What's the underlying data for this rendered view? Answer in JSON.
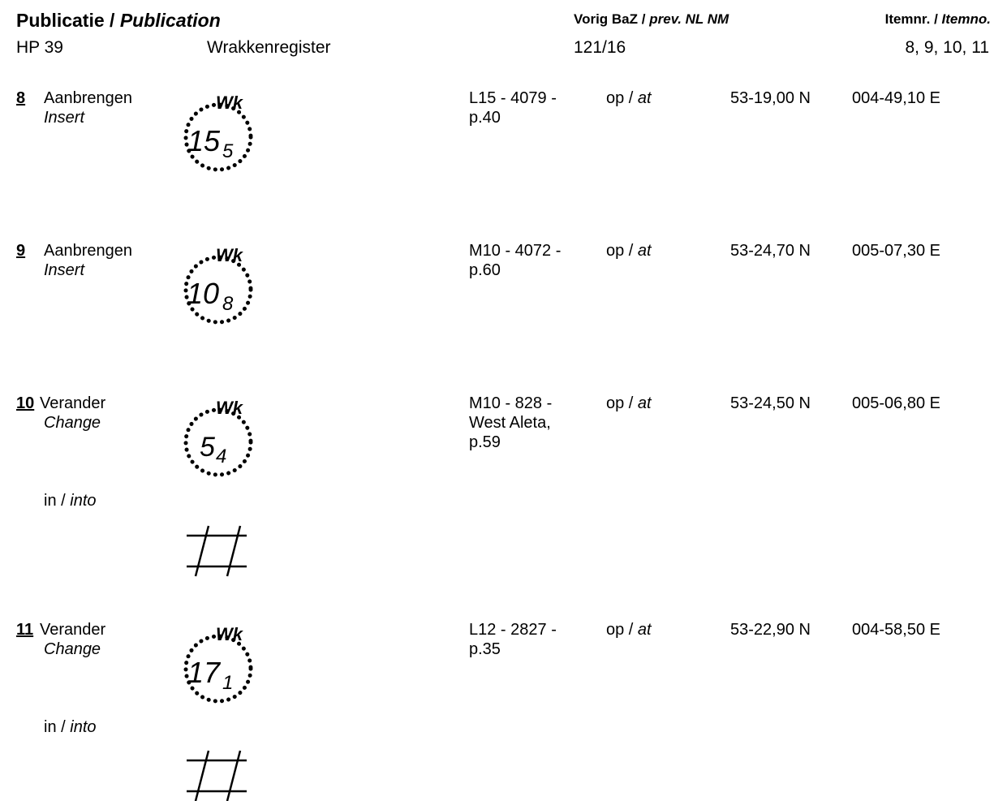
{
  "header": {
    "publication_label": "Publicatie",
    "publication_label_en": "Publication",
    "publication_code": "HP 39",
    "publication_name": "Wrakkenregister",
    "prev_label": "Vorig BaZ",
    "prev_label_en": "prev. NL NM",
    "prev_value": "121/16",
    "itemnr_label": "Itemnr.",
    "itemnr_label_en": "Itemno.",
    "itemnr_value": "8, 9, 10, 11",
    "slash": "/"
  },
  "items": [
    {
      "number": "8",
      "action": "Aanbrengen",
      "action_en": "Insert",
      "symbol": {
        "label": "Wk",
        "depth_main": "15",
        "depth_sub": "5",
        "icon": "wreck-depth-symbol-icon"
      },
      "ref_line1": "L15 - 4079 -",
      "ref_line2": "p.40",
      "ref_line3": "",
      "at": "op /",
      "at_en": "at",
      "lat": "53-19,00 N",
      "lon": "004-49,10 E"
    },
    {
      "number": "9",
      "action": "Aanbrengen",
      "action_en": "Insert",
      "symbol": {
        "label": "Wk",
        "depth_main": "10",
        "depth_sub": "8",
        "icon": "wreck-depth-symbol-icon"
      },
      "ref_line1": "M10 - 4072 -",
      "ref_line2": "p.60",
      "ref_line3": "",
      "at": "op /",
      "at_en": "at",
      "lat": "53-24,70 N",
      "lon": "005-07,30 E"
    },
    {
      "number": "10",
      "action": "Verander",
      "action_en": "Change",
      "symbol": {
        "label": "Wk",
        "depth_main": "5",
        "depth_sub": "4",
        "icon": "wreck-depth-symbol-icon"
      },
      "into": "in /",
      "into_en": "into",
      "new_symbol_icon": "foul-ground-hash-icon",
      "ref_line1": "M10 - 828 -",
      "ref_line2": "West Aleta,",
      "ref_line3": "p.59",
      "at": "op /",
      "at_en": "at",
      "lat": "53-24,50 N",
      "lon": "005-06,80 E"
    },
    {
      "number": "11",
      "action": "Verander",
      "action_en": "Change",
      "symbol": {
        "label": "Wk",
        "depth_main": "17",
        "depth_sub": "1",
        "icon": "wreck-depth-symbol-icon"
      },
      "into": "in /",
      "into_en": "into",
      "new_symbol_icon": "foul-ground-hash-icon",
      "ref_line1": "L12 - 2827 -",
      "ref_line2": "p.35",
      "ref_line3": "",
      "at": "op /",
      "at_en": "at",
      "lat": "53-22,90 N",
      "lon": "004-58,50 E"
    }
  ]
}
